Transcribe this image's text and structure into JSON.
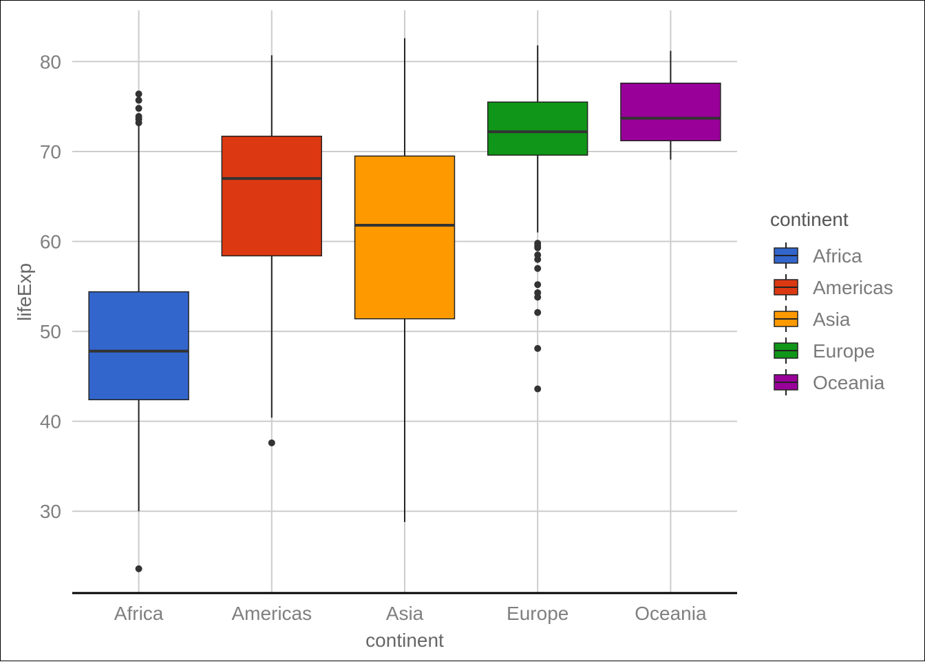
{
  "chart_data": {
    "type": "box",
    "xlabel": "continent",
    "ylabel": "lifeExp",
    "ylim": [
      20.9,
      85.7
    ],
    "yticks": [
      30,
      40,
      50,
      60,
      70,
      80
    ],
    "grid": true,
    "legend": {
      "title": "continent",
      "position": "right"
    },
    "categories": [
      "Africa",
      "Americas",
      "Asia",
      "Europe",
      "Oceania"
    ],
    "boxes": [
      {
        "name": "Africa",
        "color": "#3366cc",
        "whisker_low": 30.0,
        "q1": 42.4,
        "median": 47.8,
        "q3": 54.4,
        "whisker_high": 72.9,
        "outliers": [
          23.6,
          73.2,
          73.6,
          73.9,
          74.8,
          75.7,
          76.4
        ]
      },
      {
        "name": "Americas",
        "color": "#dc3912",
        "whisker_low": 40.4,
        "q1": 58.4,
        "median": 67.0,
        "q3": 71.7,
        "whisker_high": 80.7,
        "outliers": [
          37.6
        ]
      },
      {
        "name": "Asia",
        "color": "#ff9900",
        "whisker_low": 28.8,
        "q1": 51.4,
        "median": 61.8,
        "q3": 69.5,
        "whisker_high": 82.6,
        "outliers": []
      },
      {
        "name": "Europe",
        "color": "#109618",
        "whisker_low": 61.0,
        "q1": 69.6,
        "median": 72.2,
        "q3": 75.5,
        "whisker_high": 81.8,
        "outliers": [
          59.8,
          59.5,
          59.3,
          58.5,
          58.0,
          57.0,
          55.2,
          54.3,
          53.8,
          52.1,
          48.1,
          43.6
        ]
      },
      {
        "name": "Oceania",
        "color": "#990099",
        "whisker_low": 69.1,
        "q1": 71.2,
        "median": 73.7,
        "q3": 77.6,
        "whisker_high": 81.2,
        "outliers": []
      }
    ]
  }
}
